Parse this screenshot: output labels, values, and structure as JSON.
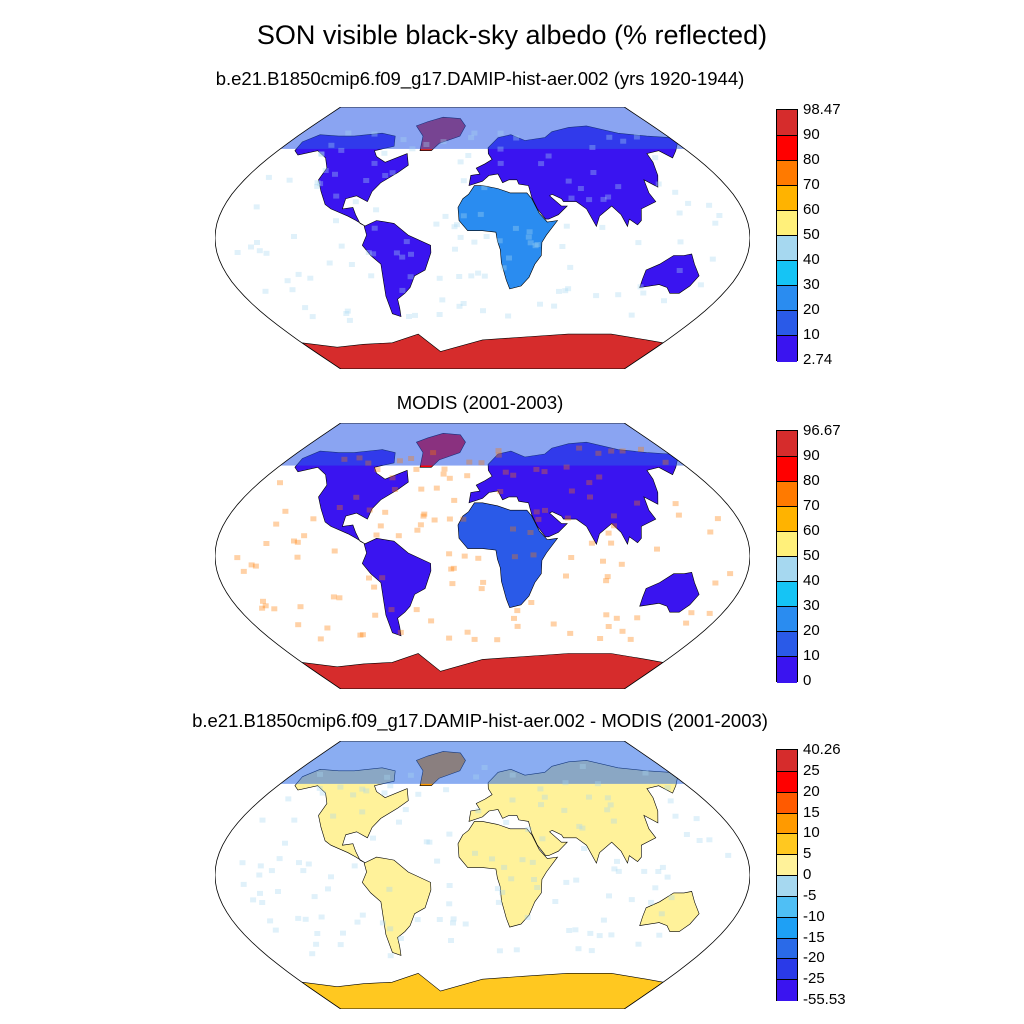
{
  "title": "SON visible black-sky albedo (% reflected)",
  "panels": [
    {
      "subtitle": "b.e21.B1850cmip6.f09_g17.DAMIP-hist-aer.002 (yrs 1920-1944)",
      "colorbar": {
        "labels": [
          "98.47",
          "90",
          "80",
          "70",
          "60",
          "50",
          "40",
          "30",
          "20",
          "10",
          "2.74"
        ],
        "colors": [
          "#d62c2c",
          "#ff0000",
          "#ff7a00",
          "#ffb300",
          "#fff07a",
          "#a6d8f0",
          "#15c4f5",
          "#2a8cf0",
          "#2a5ae8",
          "#3a14f0"
        ]
      }
    },
    {
      "subtitle": "MODIS (2001-2003)",
      "colorbar": {
        "labels": [
          "96.67",
          "90",
          "80",
          "70",
          "60",
          "50",
          "40",
          "30",
          "20",
          "10",
          "0"
        ],
        "colors": [
          "#d62c2c",
          "#ff0000",
          "#ff7a00",
          "#ffb300",
          "#fff07a",
          "#a6d8f0",
          "#15c4f5",
          "#2a8cf0",
          "#2a5ae8",
          "#3a14f0"
        ]
      }
    },
    {
      "subtitle": "b.e21.B1850cmip6.f09_g17.DAMIP-hist-aer.002 - MODIS (2001-2003)",
      "colorbar": {
        "labels": [
          "40.26",
          "25",
          "20",
          "15",
          "10",
          "5",
          "0",
          "-5",
          "-10",
          "-15",
          "-20",
          "-25",
          "-55.53"
        ],
        "colors": [
          "#d62c2c",
          "#ff0000",
          "#ff5a00",
          "#ff9a00",
          "#ffc820",
          "#fff29a",
          "#a6d8f0",
          "#4fbff5",
          "#1ea0f5",
          "#2a6ae8",
          "#2a3ae8",
          "#3a14f0"
        ]
      }
    }
  ]
}
